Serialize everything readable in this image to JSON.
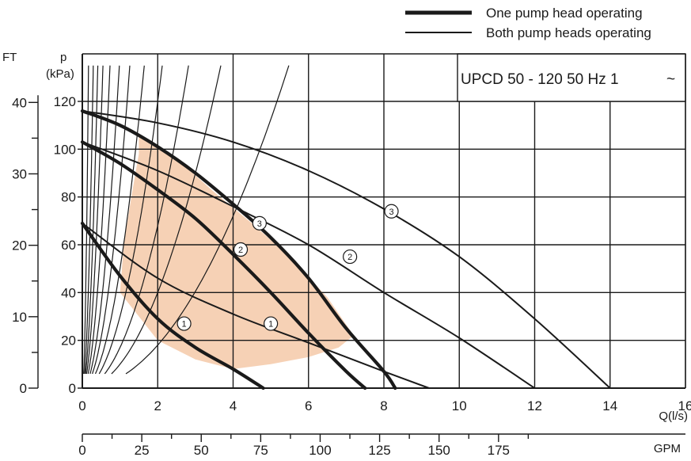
{
  "chart_data": {
    "type": "line",
    "title": "UPCD 50 - 120  50 Hz 1",
    "title_symbol": "~",
    "legend": {
      "placement": "top-right",
      "entries": [
        {
          "label": "One pump head operating",
          "style": "thick"
        },
        {
          "label": "Both pump heads operating",
          "style": "thin"
        }
      ]
    },
    "xlabel": "Q(l/s)",
    "x_unit_secondary": "GPM",
    "ylabel": "p\n(kPa)",
    "ylabel_lines": [
      "p",
      "(kPa)"
    ],
    "y_unit_secondary": "FT",
    "xlim": [
      0,
      16
    ],
    "ylim": [
      0,
      120
    ],
    "x_ticks": [
      0,
      2,
      4,
      6,
      8,
      10,
      12,
      14,
      16
    ],
    "y_ticks": [
      0,
      20,
      40,
      60,
      80,
      100,
      120
    ],
    "gpm_ticks": [
      0,
      25,
      50,
      75,
      100,
      125,
      150,
      175
    ],
    "ft_ticks": [
      0,
      10,
      20,
      30,
      40
    ],
    "grid": true,
    "colors": {
      "shade": "#f5c9a8",
      "line": "#1a1a1a",
      "grid": "#1a1a1a"
    },
    "series": [
      {
        "name": "1",
        "group": "one-head",
        "x": [
          0,
          1,
          2,
          3,
          4,
          4.8
        ],
        "y": [
          69,
          47,
          29,
          17,
          8,
          0
        ]
      },
      {
        "name": "2",
        "group": "one-head",
        "x": [
          0,
          1,
          2,
          3,
          4,
          5,
          6,
          7,
          7.5
        ],
        "y": [
          103,
          94,
          83,
          71,
          56,
          40,
          23,
          7,
          0
        ]
      },
      {
        "name": "3",
        "group": "one-head",
        "x": [
          0,
          1,
          2,
          3,
          4,
          5,
          6,
          7,
          8,
          8.3
        ],
        "y": [
          116,
          110,
          101,
          90,
          77,
          63,
          46,
          25,
          7,
          0
        ]
      },
      {
        "name": "1",
        "group": "both-heads",
        "x": [
          0,
          2,
          4,
          6,
          8,
          9.2
        ],
        "y": [
          69,
          46,
          31,
          19,
          7,
          0
        ]
      },
      {
        "name": "2",
        "group": "both-heads",
        "x": [
          0,
          2,
          4,
          6,
          8,
          10,
          12
        ],
        "y": [
          103,
          91,
          76,
          60,
          40,
          21,
          0
        ]
      },
      {
        "name": "3",
        "group": "both-heads",
        "x": [
          0,
          2,
          4,
          6,
          8,
          10,
          12,
          14
        ],
        "y": [
          116,
          111,
          103,
          91,
          75,
          55,
          29,
          0
        ]
      }
    ],
    "curve_markers": [
      {
        "text": "1",
        "x": 2.7,
        "y": 27
      },
      {
        "text": "2",
        "x": 4.2,
        "y": 58
      },
      {
        "text": "3",
        "x": 4.7,
        "y": 69
      },
      {
        "text": "1",
        "x": 5.0,
        "y": 27
      },
      {
        "text": "2",
        "x": 7.1,
        "y": 55
      },
      {
        "text": "3",
        "x": 8.2,
        "y": 74
      }
    ],
    "system_curve_constants": [
      5000,
      1600,
      800,
      450,
      250,
      140,
      85,
      50,
      30,
      17,
      10,
      4.5
    ],
    "system_curve_ymin": 6,
    "shaded_region": {
      "x": [
        1.5,
        1.3,
        1.1,
        1.0,
        2.0,
        3.0,
        4.0,
        5.0,
        6.0,
        6.8,
        7.2,
        6.5,
        5.5,
        4.5,
        3.5,
        2.5,
        1.5
      ],
      "y": [
        98,
        80,
        60,
        40,
        20,
        12,
        8,
        10,
        13,
        17,
        22,
        38,
        55,
        69,
        82,
        96,
        106
      ]
    }
  }
}
